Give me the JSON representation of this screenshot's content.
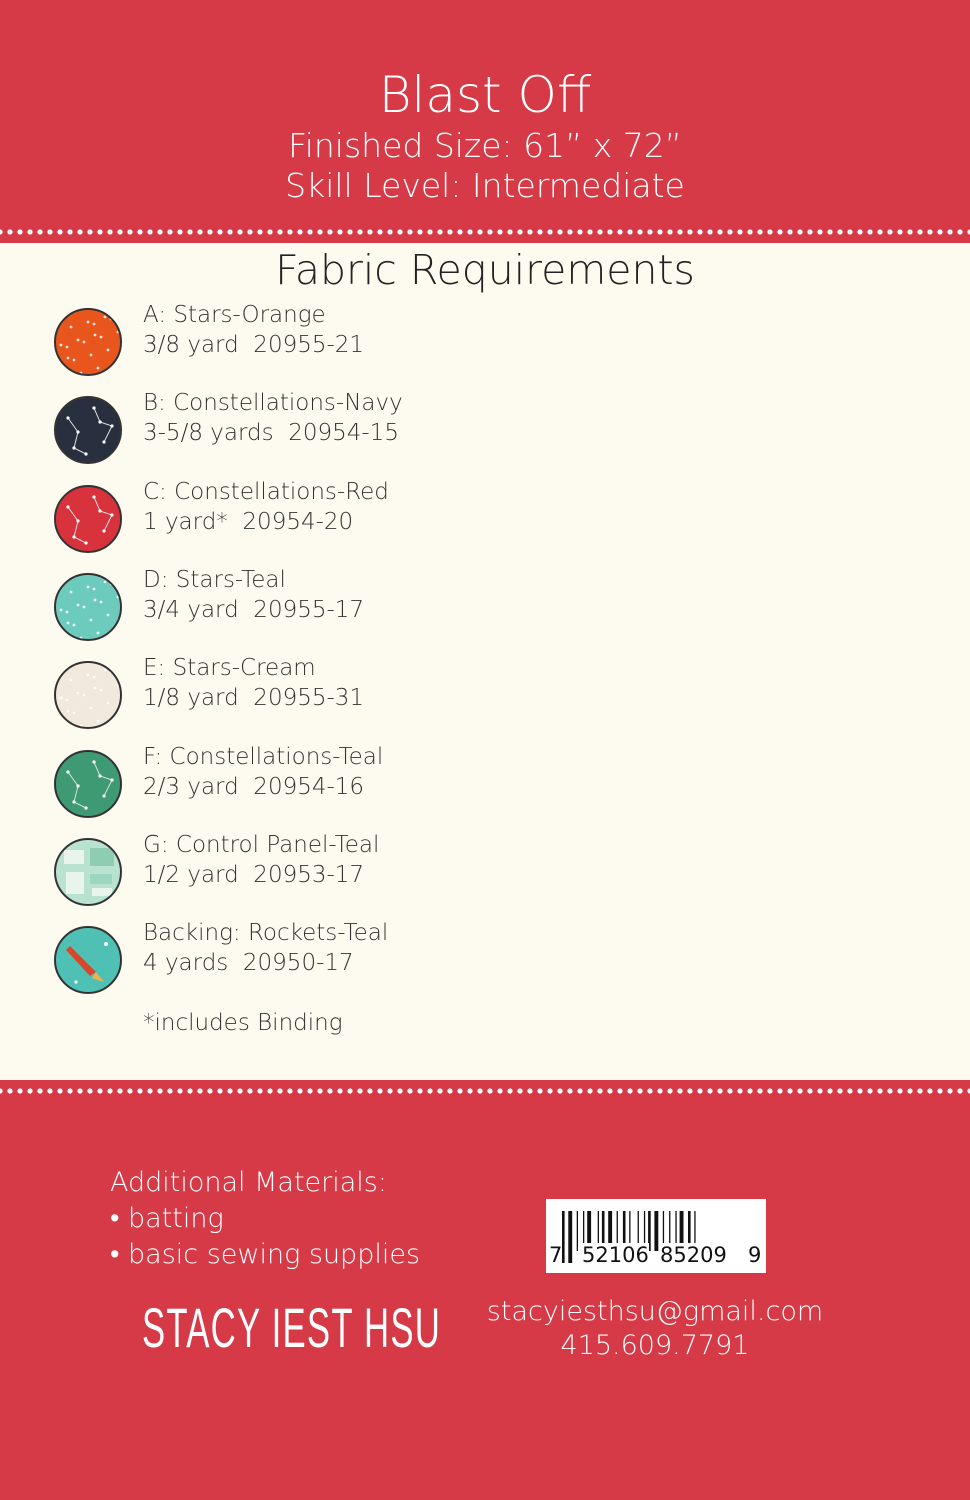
{
  "header": {
    "title": "Blast Off",
    "finished_size": "Finished Size: 61” x 72”",
    "skill_level": "Skill Level: Intermediate"
  },
  "fabric": {
    "title": "Fabric Requirements",
    "items": [
      {
        "name": "A: Stars-Orange",
        "amount": "3/8 yard  20955-21",
        "color": "#e8561e",
        "pattern": "stars"
      },
      {
        "name": "B: Constellations-Navy",
        "amount": "3-5/8 yards  20954-15",
        "color": "#283040",
        "pattern": "constellations"
      },
      {
        "name": "C: Constellations-Red",
        "amount": "1 yard*  20954-20",
        "color": "#d8323c",
        "pattern": "constellations"
      },
      {
        "name": "D: Stars-Teal",
        "amount": "3/4 yard  20955-17",
        "color": "#6ccbbd",
        "pattern": "stars"
      },
      {
        "name": "E: Stars-Cream",
        "amount": "1/8 yard  20955-31",
        "color": "#f1e8de",
        "pattern": "stars"
      },
      {
        "name": "F: Constellations-Teal",
        "amount": "2/3 yard  20954-16",
        "color": "#3e9a72",
        "pattern": "constellations"
      },
      {
        "name": "G: Control Panel-Teal",
        "amount": "1/2 yard  20953-17",
        "color": "#b9e2cf",
        "pattern": "panel"
      },
      {
        "name": "Backing: Rockets-Teal",
        "amount": "4 yards  20950-17",
        "color": "#4ec0b4",
        "pattern": "rockets"
      }
    ],
    "note": "*includes Binding"
  },
  "footer": {
    "additional_title": "Additional Materials:",
    "materials": [
      "• batting",
      "• basic sewing supplies"
    ],
    "brand": "STACY IEST HSU",
    "email": "stacyiesthsu@gmail.com",
    "phone": "415.609.7791",
    "barcode_digits": [
      "7",
      "52106",
      "85209",
      "9"
    ]
  },
  "colors": {
    "red": "#d63a47",
    "cream": "#fdfaef"
  }
}
